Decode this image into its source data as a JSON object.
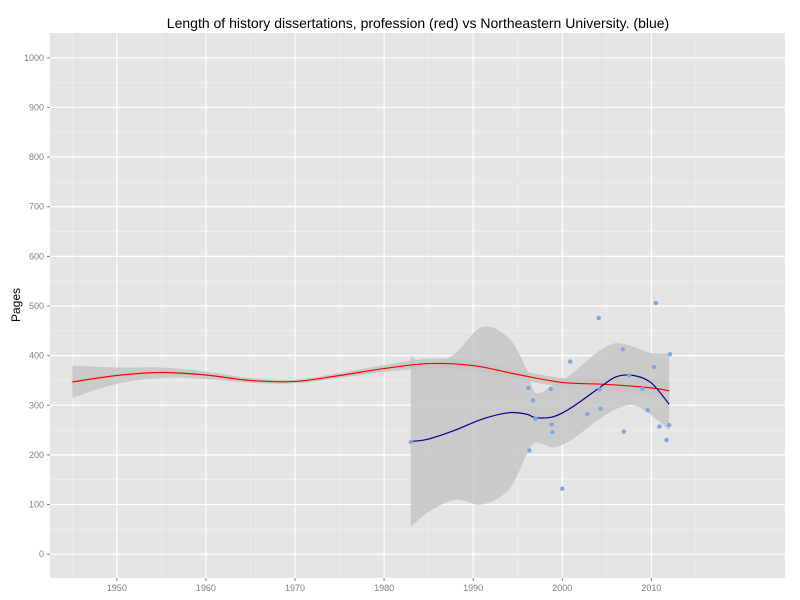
{
  "chart_data": {
    "type": "scatter",
    "title": "Length of history dissertations, profession (red) vs Northeastern University. (blue)",
    "xlabel": "",
    "ylabel": "Pages",
    "xlim": [
      1942.5,
      2025
    ],
    "ylim": [
      -48,
      1050
    ],
    "x_ticks": [
      "1950",
      "1960",
      "1970",
      "1980",
      "1990",
      "2000",
      "2010"
    ],
    "y_ticks": [
      "0",
      "100",
      "200",
      "300",
      "400",
      "500",
      "600",
      "700",
      "800",
      "900",
      "1000"
    ],
    "grid": true,
    "panel_color": "#e5e5e5",
    "grid_color": "#ffffff",
    "ribbon_color": "#c5c5c5",
    "series": [
      {
        "style": "smooth",
        "color": "#ff0000",
        "x": [
          1945,
          1950,
          1955,
          1960,
          1965,
          1970,
          1975,
          1980,
          1985,
          1990,
          1995,
          2000,
          2005,
          2010,
          2012
        ],
        "values": [
          347,
          360,
          366,
          361,
          350,
          348,
          360,
          374,
          384,
          380,
          362,
          346,
          342,
          335,
          329
        ],
        "lower": [
          315,
          343,
          355,
          353,
          345,
          344,
          355,
          367,
          374,
          370,
          353,
          337,
          330,
          318,
          310
        ],
        "upper": [
          380,
          376,
          376,
          368,
          355,
          352,
          365,
          381,
          394,
          390,
          371,
          355,
          354,
          352,
          348
        ]
      },
      {
        "style": "smooth",
        "color": "#00008b",
        "x": [
          1983,
          1985,
          1988,
          1991,
          1994,
          1996,
          1997,
          1999,
          2001,
          2004,
          2006,
          2008,
          2010,
          2012
        ],
        "values": [
          227,
          232,
          250,
          272,
          285,
          282,
          275,
          277,
          295,
          333,
          357,
          360,
          345,
          302
        ],
        "lower": [
          55,
          85,
          110,
          100,
          130,
          200,
          225,
          215,
          230,
          270,
          292,
          300,
          280,
          250
        ],
        "upper": [
          400,
          378,
          405,
          458,
          435,
          372,
          325,
          340,
          362,
          408,
          425,
          418,
          405,
          405
        ]
      },
      {
        "style": "points",
        "color": "#7fa6e0",
        "x": [
          1983,
          1996.2,
          1996.3,
          1996.7,
          1997,
          1998.7,
          1998.8,
          1998.9,
          2000,
          2000.9,
          2002.8,
          2004.1,
          2004.2,
          2004.3,
          2006.8,
          2006.9,
          2007.5,
          2009,
          2009.6,
          2010.3,
          2010.5,
          2010.9,
          2011.7,
          2012,
          2012.1
        ],
        "values": [
          226,
          335,
          209,
          310,
          273,
          333,
          261,
          246,
          132,
          388,
          282,
          476,
          332,
          293,
          413,
          247,
          360,
          333,
          290,
          377,
          506,
          257,
          230,
          260,
          403
        ]
      }
    ]
  }
}
